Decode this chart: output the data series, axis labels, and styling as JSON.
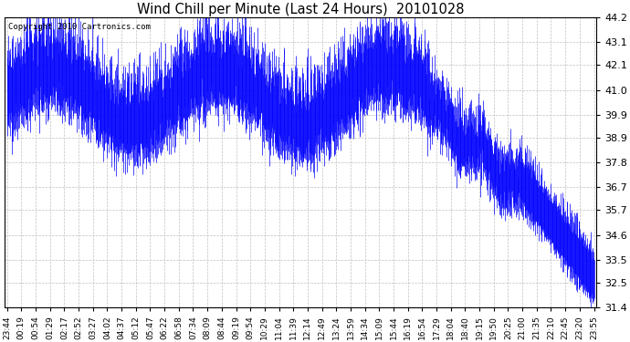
{
  "title": "Wind Chill per Minute (Last 24 Hours)  20101028",
  "copyright": "Copyright 2010 Cartronics.com",
  "line_color": "#0000ff",
  "bg_color": "#ffffff",
  "plot_bg_color": "#ffffff",
  "grid_color": "#c0c0c0",
  "ylim": [
    31.4,
    44.2
  ],
  "yticks": [
    31.4,
    32.5,
    33.5,
    34.6,
    35.7,
    36.7,
    37.8,
    38.9,
    39.9,
    41.0,
    42.1,
    43.1,
    44.2
  ],
  "xtick_labels": [
    "23:44",
    "00:19",
    "00:54",
    "01:29",
    "02:17",
    "02:52",
    "03:27",
    "04:02",
    "04:37",
    "05:12",
    "05:47",
    "06:22",
    "06:58",
    "07:34",
    "08:09",
    "08:44",
    "09:19",
    "09:54",
    "10:29",
    "11:04",
    "11:39",
    "12:14",
    "12:49",
    "13:24",
    "13:59",
    "14:34",
    "15:09",
    "15:44",
    "16:19",
    "16:54",
    "17:29",
    "18:04",
    "18:40",
    "19:15",
    "19:50",
    "20:25",
    "21:00",
    "21:35",
    "22:10",
    "22:45",
    "23:20",
    "23:55"
  ],
  "seed": 42
}
